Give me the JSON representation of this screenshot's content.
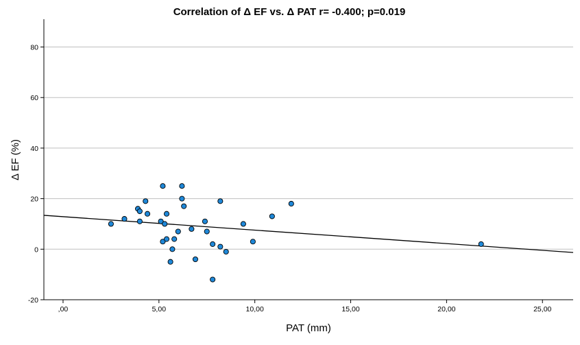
{
  "chart_data": {
    "type": "scatter",
    "title": "Correlation of Δ EF vs. Δ PAT r= -0.400; p=0.019",
    "xlabel": "PAT (mm)",
    "ylabel": "Δ EF (%)",
    "xlim": [
      -1.0,
      26.6
    ],
    "ylim": [
      -20,
      91
    ],
    "x_ticks": [
      0,
      5,
      10,
      15,
      20,
      25
    ],
    "x_tick_labels": [
      ",00",
      "5,00",
      "10,00",
      "15,00",
      "20,00",
      "25,00"
    ],
    "y_ticks": [
      -20,
      0,
      20,
      40,
      60,
      80
    ],
    "y_tick_labels": [
      "-20",
      "0",
      "20",
      "40",
      "60",
      "80"
    ],
    "gridlines": "horizontal",
    "colors": {
      "marker_fill": "#1f88d8",
      "marker_stroke": "#000000",
      "grid": "#bfbfbf",
      "fit_line": "#000000"
    },
    "fit_line": {
      "x": [
        -1.0,
        26.6
      ],
      "y": [
        13.4,
        -1.3
      ]
    },
    "points": [
      {
        "x": 2.5,
        "y": 10
      },
      {
        "x": 3.2,
        "y": 12
      },
      {
        "x": 3.9,
        "y": 16
      },
      {
        "x": 4.0,
        "y": 15
      },
      {
        "x": 4.0,
        "y": 11
      },
      {
        "x": 4.3,
        "y": 19
      },
      {
        "x": 4.4,
        "y": 14
      },
      {
        "x": 5.1,
        "y": 11
      },
      {
        "x": 5.2,
        "y": 25
      },
      {
        "x": 5.2,
        "y": 3
      },
      {
        "x": 5.3,
        "y": 10
      },
      {
        "x": 5.4,
        "y": 14
      },
      {
        "x": 5.4,
        "y": 4
      },
      {
        "x": 5.6,
        "y": -5
      },
      {
        "x": 5.7,
        "y": 0
      },
      {
        "x": 5.8,
        "y": 4
      },
      {
        "x": 6.0,
        "y": 7
      },
      {
        "x": 6.2,
        "y": 25
      },
      {
        "x": 6.2,
        "y": 20
      },
      {
        "x": 6.3,
        "y": 17
      },
      {
        "x": 6.7,
        "y": 8
      },
      {
        "x": 6.9,
        "y": -4
      },
      {
        "x": 7.4,
        "y": 11
      },
      {
        "x": 7.5,
        "y": 7
      },
      {
        "x": 7.8,
        "y": -12
      },
      {
        "x": 7.8,
        "y": 2
      },
      {
        "x": 8.2,
        "y": 19
      },
      {
        "x": 8.2,
        "y": 1
      },
      {
        "x": 8.5,
        "y": -1
      },
      {
        "x": 9.4,
        "y": 10
      },
      {
        "x": 9.9,
        "y": 3
      },
      {
        "x": 10.9,
        "y": 13
      },
      {
        "x": 11.9,
        "y": 18
      },
      {
        "x": 21.8,
        "y": 2
      }
    ]
  }
}
